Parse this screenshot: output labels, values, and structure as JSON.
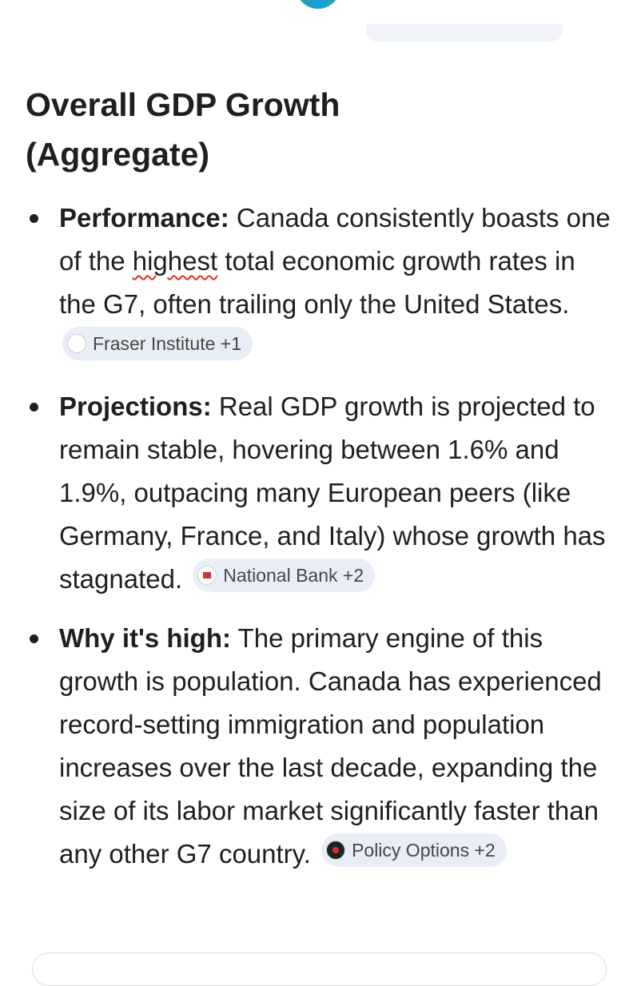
{
  "heading": "Overall GDP Growth (Aggregate)",
  "bullets": [
    {
      "label": "Performance:",
      "text_before": " Canada consistently boasts one of the ",
      "highlight": "highest",
      "text_after": " total economic growth rates in the G7, often trailing only the United States.",
      "source": "Fraser Institute +1"
    },
    {
      "label": "Projections:",
      "text": " Real GDP growth is projected to remain stable, hovering between 1.6% and 1.9%, outpacing many European peers (like Germany, France, and Italy) whose growth has stagnated.",
      "source": "National Bank +2"
    },
    {
      "label": "Why it's high:",
      "text": " The primary engine of this growth is population. Canada has experienced record-setting immigration and population increases over the last decade, expanding the size of its labor market significantly faster than any other G7 country.",
      "source": "Policy Options +2"
    }
  ]
}
